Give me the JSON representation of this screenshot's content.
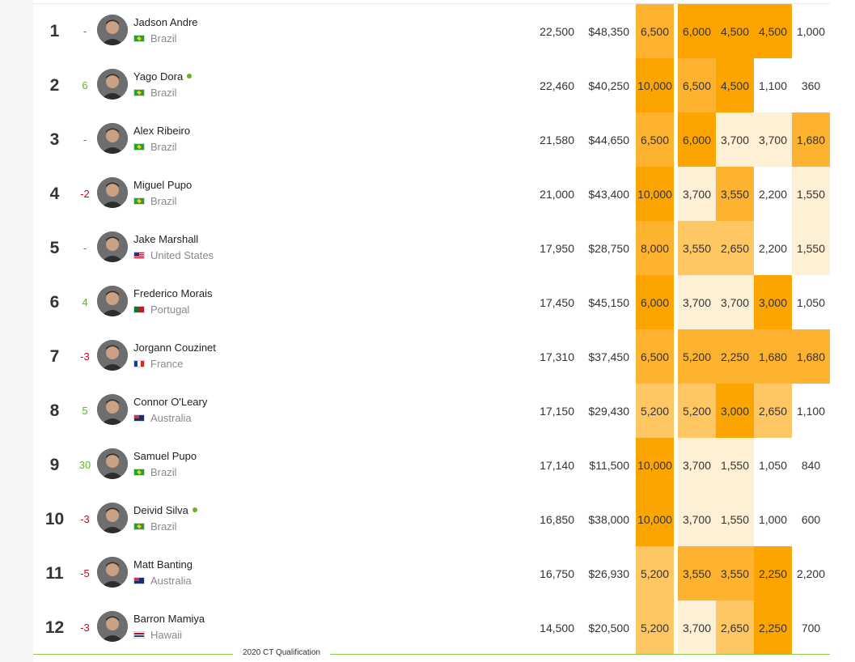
{
  "rankings": [
    {
      "rank": "1",
      "movement": "-",
      "trend": "none",
      "name": "Jadson Andre",
      "online": false,
      "country": "Brazil",
      "flag": "brazil",
      "points": "22,500",
      "prize": "$48,350",
      "events": [
        {
          "value": "6,500",
          "heat": "high"
        },
        {
          "value": "6,000",
          "heat": "top"
        },
        {
          "value": "4,500",
          "heat": "top"
        },
        {
          "value": "4,500",
          "heat": "top"
        },
        {
          "value": "1,000",
          "heat": "none"
        }
      ]
    },
    {
      "rank": "2",
      "movement": "6",
      "trend": "up",
      "name": "Yago Dora",
      "online": true,
      "country": "Brazil",
      "flag": "brazil",
      "points": "22,460",
      "prize": "$40,250",
      "events": [
        {
          "value": "10,000",
          "heat": "top"
        },
        {
          "value": "6,500",
          "heat": "high"
        },
        {
          "value": "4,500",
          "heat": "top"
        },
        {
          "value": "1,100",
          "heat": "none"
        },
        {
          "value": "360",
          "heat": "none"
        }
      ]
    },
    {
      "rank": "3",
      "movement": "-",
      "trend": "none",
      "name": "Alex Ribeiro",
      "online": false,
      "country": "Brazil",
      "flag": "brazil",
      "points": "21,580",
      "prize": "$44,650",
      "events": [
        {
          "value": "6,500",
          "heat": "high"
        },
        {
          "value": "6,000",
          "heat": "top"
        },
        {
          "value": "3,700",
          "heat": "low"
        },
        {
          "value": "3,700",
          "heat": "low"
        },
        {
          "value": "1,680",
          "heat": "high"
        }
      ]
    },
    {
      "rank": "4",
      "movement": "-2",
      "trend": "down",
      "name": "Miguel Pupo",
      "online": false,
      "country": "Brazil",
      "flag": "brazil",
      "points": "21,000",
      "prize": "$43,400",
      "events": [
        {
          "value": "10,000",
          "heat": "top"
        },
        {
          "value": "3,700",
          "heat": "low"
        },
        {
          "value": "3,550",
          "heat": "high"
        },
        {
          "value": "2,200",
          "heat": "none"
        },
        {
          "value": "1,550",
          "heat": "low"
        }
      ]
    },
    {
      "rank": "5",
      "movement": "-",
      "trend": "none",
      "name": "Jake Marshall",
      "online": false,
      "country": "United States",
      "flag": "usa",
      "points": "17,950",
      "prize": "$28,750",
      "events": [
        {
          "value": "8,000",
          "heat": "high"
        },
        {
          "value": "3,550",
          "heat": "mid"
        },
        {
          "value": "2,650",
          "heat": "mid"
        },
        {
          "value": "2,200",
          "heat": "none"
        },
        {
          "value": "1,550",
          "heat": "low"
        }
      ]
    },
    {
      "rank": "6",
      "movement": "4",
      "trend": "up",
      "name": "Frederico Morais",
      "online": false,
      "country": "Portugal",
      "flag": "portugal",
      "points": "17,450",
      "prize": "$45,150",
      "events": [
        {
          "value": "6,000",
          "heat": "top"
        },
        {
          "value": "3,700",
          "heat": "low"
        },
        {
          "value": "3,700",
          "heat": "low"
        },
        {
          "value": "3,000",
          "heat": "top"
        },
        {
          "value": "1,050",
          "heat": "none"
        }
      ]
    },
    {
      "rank": "7",
      "movement": "-3",
      "trend": "down",
      "name": "Jorgann Couzinet",
      "online": false,
      "country": "France",
      "flag": "france",
      "points": "17,310",
      "prize": "$37,450",
      "events": [
        {
          "value": "6,500",
          "heat": "high"
        },
        {
          "value": "5,200",
          "heat": "high"
        },
        {
          "value": "2,250",
          "heat": "high"
        },
        {
          "value": "1,680",
          "heat": "high"
        },
        {
          "value": "1,680",
          "heat": "high"
        }
      ]
    },
    {
      "rank": "8",
      "movement": "5",
      "trend": "up",
      "name": "Connor O'Leary",
      "online": false,
      "country": "Australia",
      "flag": "australia",
      "points": "17,150",
      "prize": "$29,430",
      "events": [
        {
          "value": "5,200",
          "heat": "mid"
        },
        {
          "value": "5,200",
          "heat": "mid"
        },
        {
          "value": "3,000",
          "heat": "top"
        },
        {
          "value": "2,650",
          "heat": "mid"
        },
        {
          "value": "1,100",
          "heat": "none"
        }
      ]
    },
    {
      "rank": "9",
      "movement": "30",
      "trend": "up",
      "name": "Samuel Pupo",
      "online": false,
      "country": "Brazil",
      "flag": "brazil",
      "points": "17,140",
      "prize": "$11,500",
      "events": [
        {
          "value": "10,000",
          "heat": "top"
        },
        {
          "value": "3,700",
          "heat": "low"
        },
        {
          "value": "1,550",
          "heat": "low"
        },
        {
          "value": "1,050",
          "heat": "none"
        },
        {
          "value": "840",
          "heat": "none"
        }
      ]
    },
    {
      "rank": "10",
      "movement": "-3",
      "trend": "down",
      "name": "Deivid Silva",
      "online": true,
      "country": "Brazil",
      "flag": "brazil",
      "points": "16,850",
      "prize": "$38,000",
      "events": [
        {
          "value": "10,000",
          "heat": "top"
        },
        {
          "value": "3,700",
          "heat": "low"
        },
        {
          "value": "1,550",
          "heat": "low"
        },
        {
          "value": "1,000",
          "heat": "none"
        },
        {
          "value": "600",
          "heat": "none"
        }
      ]
    },
    {
      "rank": "11",
      "movement": "-5",
      "trend": "down",
      "name": "Matt Banting",
      "online": false,
      "country": "Australia",
      "flag": "australia",
      "points": "16,750",
      "prize": "$26,930",
      "events": [
        {
          "value": "5,200",
          "heat": "mid"
        },
        {
          "value": "3,550",
          "heat": "high"
        },
        {
          "value": "3,550",
          "heat": "high"
        },
        {
          "value": "2,250",
          "heat": "top"
        },
        {
          "value": "2,200",
          "heat": "none"
        }
      ]
    },
    {
      "rank": "12",
      "movement": "-3",
      "trend": "down",
      "name": "Barron Mamiya",
      "online": false,
      "country": "Hawaii",
      "flag": "hawaii",
      "points": "14,500",
      "prize": "$20,500",
      "events": [
        {
          "value": "5,200",
          "heat": "mid"
        },
        {
          "value": "3,700",
          "heat": "low"
        },
        {
          "value": "2,650",
          "heat": "mid"
        },
        {
          "value": "2,250",
          "heat": "top"
        },
        {
          "value": "700",
          "heat": "none"
        }
      ]
    }
  ],
  "qualification_label": "2020 CT Qualification",
  "colors": {
    "heat_top": "#fca500",
    "heat_high": "#fdb330",
    "heat_mid": "#fec763",
    "heat_low": "#fef0d4",
    "movement_up": "#62b624",
    "movement_down": "#d0021b",
    "online_dot": "#62b624",
    "qualification_line": "#8cc94a"
  }
}
